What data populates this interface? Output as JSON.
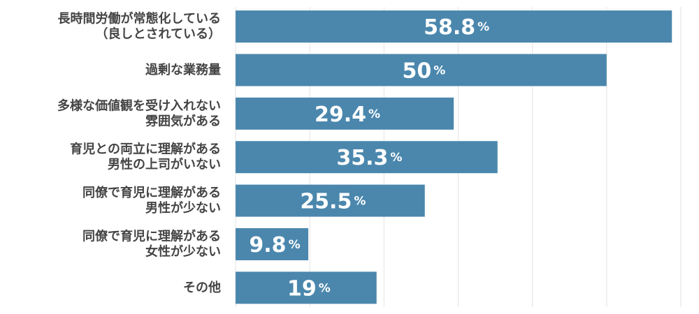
{
  "chart_data": {
    "type": "bar",
    "orientation": "horizontal",
    "categories": [
      [
        "長時間労働が常態化している",
        "（良しとされている）"
      ],
      [
        "過剰な業務量"
      ],
      [
        "多様な価値観を受け入れない",
        "雰囲気がある"
      ],
      [
        "育児との両立に理解がある",
        "男性の上司がいない"
      ],
      [
        "同僚で育児に理解がある",
        "男性が少ない"
      ],
      [
        "同僚で育児に理解がある",
        "女性が少ない"
      ],
      [
        "その他"
      ]
    ],
    "values": [
      58.8,
      50,
      29.4,
      35.3,
      25.5,
      9.8,
      19
    ],
    "value_labels": [
      "58.8",
      "50",
      "29.4",
      "35.3",
      "25.5",
      "9.8",
      "19"
    ],
    "unit": "%",
    "xlim": [
      0,
      60
    ],
    "grid": true,
    "colors": {
      "bar": "#4b87ad",
      "grid": "#e3e3e3",
      "label": "#444444",
      "value_text": "#ffffff"
    }
  }
}
